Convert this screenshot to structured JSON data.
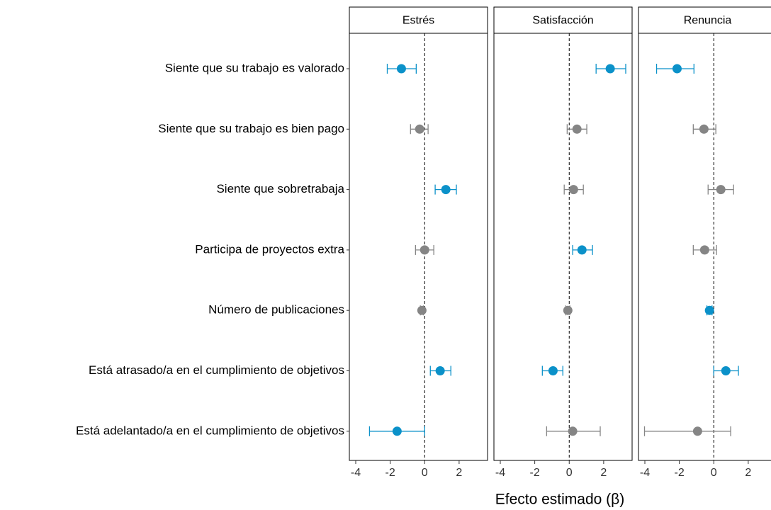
{
  "chart_data": {
    "type": "dotplot",
    "x_label": "Efecto estimado (β)",
    "categories": [
      "Siente que su trabajo es valorado",
      "Siente que su trabajo es bien pago",
      "Siente que sobretrabaja",
      "Participa de proyectos extra",
      "Número de publicaciones",
      "Está atrasado/a en el cumplimiento de objetivos",
      "Está adelantado/a en el cumplimiento de objetivos"
    ],
    "xlim": [
      -4.37,
      3.65
    ],
    "xticks": [
      -4,
      -2,
      0,
      2
    ],
    "panels": [
      {
        "title": "Estrés",
        "values": [
          -1.35,
          -0.29,
          1.23,
          0,
          -0.16,
          0.9,
          -1.6
        ],
        "low": [
          -2.17,
          -0.82,
          0.61,
          -0.53,
          -0.25,
          0.33,
          -3.2
        ],
        "high": [
          -0.49,
          0.2,
          1.84,
          0.53,
          -0.07,
          1.52,
          0
        ],
        "colors": [
          "#0b91c9",
          "#858585",
          "#0b91c9",
          "#858585",
          "#858585",
          "#0b91c9",
          "#0b91c9"
        ]
      },
      {
        "title": "Satisfacción",
        "values": [
          2.38,
          0.45,
          0.25,
          0.74,
          -0.08,
          -0.94,
          0.2
        ],
        "low": [
          1.56,
          -0.12,
          -0.29,
          0.2,
          -0.2,
          -1.56,
          -1.31
        ],
        "high": [
          3.28,
          1.02,
          0.82,
          1.35,
          0.04,
          -0.37,
          1.8
        ],
        "colors": [
          "#0b91c9",
          "#858585",
          "#858585",
          "#0b91c9",
          "#858585",
          "#0b91c9",
          "#858585"
        ]
      },
      {
        "title": "Renuncia",
        "values": [
          -2.13,
          -0.57,
          0.41,
          -0.53,
          -0.25,
          0.7,
          -0.94
        ],
        "low": [
          -3.32,
          -1.19,
          -0.33,
          -1.19,
          -0.4,
          0,
          -4.02
        ],
        "high": [
          -1.15,
          0.12,
          1.15,
          0.16,
          -0.1,
          1.43,
          0.98
        ],
        "colors": [
          "#0b91c9",
          "#858585",
          "#858585",
          "#858585",
          "#0b91c9",
          "#0b91c9",
          "#858585"
        ]
      }
    ]
  }
}
